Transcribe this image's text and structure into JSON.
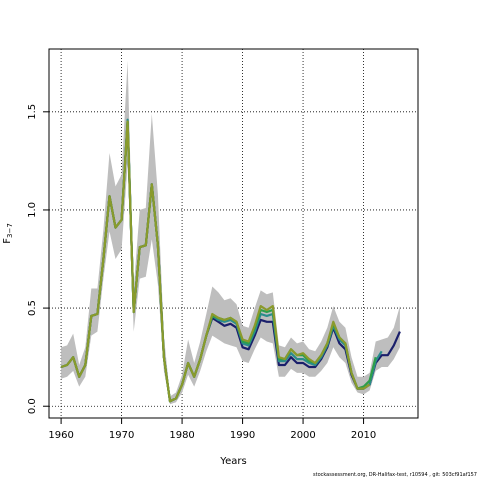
{
  "chart_data": {
    "type": "line",
    "xlabel": "Years",
    "ylabel": "F3-7",
    "ylabel_base": "F",
    "ylabel_sub": "3−7",
    "xlim": [
      1958,
      2019
    ],
    "ylim": [
      -0.06,
      1.82
    ],
    "xticks": [
      1960,
      1970,
      1980,
      1990,
      2000,
      2010
    ],
    "yticks": [
      0.0,
      0.5,
      1.0,
      1.5
    ],
    "yticks_labels": [
      "0.0",
      "0.5",
      "1.0",
      "1.5"
    ],
    "grid": true,
    "band": {
      "color": "#bebebe",
      "x": [
        1960,
        1961,
        1962,
        1963,
        1964,
        1965,
        1966,
        1967,
        1968,
        1969,
        1970,
        1971,
        1972,
        1973,
        1974,
        1975,
        1976,
        1977,
        1978,
        1979,
        1980,
        1981,
        1982,
        1983,
        1984,
        1985,
        1986,
        1987,
        1988,
        1989,
        1990,
        1991,
        1992,
        1993,
        1994,
        1995,
        1996,
        1997,
        1998,
        1999,
        2000,
        2001,
        2002,
        2003,
        2004,
        2005,
        2006,
        2007,
        2008,
        2009,
        2010,
        2011,
        2012,
        2013,
        2014,
        2015,
        2016
      ],
      "upper": [
        0.3,
        0.31,
        0.37,
        0.21,
        0.3,
        0.6,
        0.6,
        0.9,
        1.29,
        1.12,
        1.18,
        1.76,
        0.6,
        1.0,
        1.01,
        1.49,
        1.08,
        0.36,
        0.05,
        0.07,
        0.16,
        0.34,
        0.22,
        0.33,
        0.47,
        0.61,
        0.58,
        0.54,
        0.55,
        0.52,
        0.41,
        0.4,
        0.5,
        0.59,
        0.57,
        0.58,
        0.31,
        0.3,
        0.35,
        0.32,
        0.33,
        0.29,
        0.28,
        0.33,
        0.4,
        0.51,
        0.43,
        0.4,
        0.25,
        0.15,
        0.15,
        0.17,
        0.33,
        0.34,
        0.35,
        0.4,
        0.51
      ],
      "lower": [
        0.14,
        0.15,
        0.18,
        0.1,
        0.15,
        0.36,
        0.38,
        0.65,
        0.89,
        0.75,
        0.8,
        1.23,
        0.38,
        0.65,
        0.66,
        0.85,
        0.62,
        0.18,
        0.01,
        0.02,
        0.07,
        0.16,
        0.1,
        0.18,
        0.28,
        0.36,
        0.34,
        0.32,
        0.31,
        0.3,
        0.23,
        0.22,
        0.29,
        0.35,
        0.33,
        0.32,
        0.15,
        0.15,
        0.19,
        0.17,
        0.17,
        0.15,
        0.15,
        0.18,
        0.22,
        0.3,
        0.25,
        0.22,
        0.12,
        0.07,
        0.06,
        0.08,
        0.18,
        0.2,
        0.2,
        0.24,
        0.3
      ]
    },
    "series": [
      {
        "color": "#1a1f6b",
        "width": 2.2,
        "x": [
          1960,
          1961,
          1962,
          1963,
          1964,
          1965,
          1966,
          1967,
          1968,
          1969,
          1970,
          1971,
          1972,
          1973,
          1974,
          1975,
          1976,
          1977,
          1978,
          1979,
          1980,
          1981,
          1982,
          1983,
          1984,
          1985,
          1986,
          1987,
          1988,
          1989,
          1990,
          1991,
          1992,
          1993,
          1994,
          1995,
          1996,
          1997,
          1998,
          1999,
          2000,
          2001,
          2002,
          2003,
          2004,
          2005,
          2006,
          2007,
          2008,
          2009,
          2010,
          2011,
          2012,
          2013,
          2014,
          2015,
          2016
        ],
        "values": [
          0.2,
          0.21,
          0.25,
          0.15,
          0.21,
          0.46,
          0.47,
          0.75,
          1.07,
          0.91,
          0.95,
          1.45,
          0.48,
          0.81,
          0.82,
          1.13,
          0.82,
          0.25,
          0.025,
          0.04,
          0.11,
          0.22,
          0.15,
          0.24,
          0.36,
          0.45,
          0.43,
          0.41,
          0.42,
          0.4,
          0.3,
          0.29,
          0.36,
          0.44,
          0.43,
          0.43,
          0.21,
          0.21,
          0.25,
          0.22,
          0.22,
          0.2,
          0.2,
          0.24,
          0.3,
          0.4,
          0.32,
          0.29,
          0.16,
          0.09,
          0.09,
          0.11,
          0.22,
          0.26,
          0.26,
          0.31,
          0.38
        ]
      },
      {
        "color": "#2a8c8c",
        "width": 2.2,
        "x": [
          1960,
          1961,
          1962,
          1963,
          1964,
          1965,
          1966,
          1967,
          1968,
          1969,
          1970,
          1971,
          1972,
          1973,
          1974,
          1975,
          1976,
          1977,
          1978,
          1979,
          1980,
          1981,
          1982,
          1983,
          1984,
          1985,
          1986,
          1987,
          1988,
          1989,
          1990,
          1991,
          1992,
          1993,
          1994,
          1995,
          1996,
          1997,
          1998,
          1999,
          2000,
          2001,
          2002,
          2003,
          2004,
          2005,
          2006,
          2007,
          2008,
          2009,
          2010,
          2011,
          2012,
          2013
        ],
        "values": [
          0.2,
          0.21,
          0.25,
          0.15,
          0.21,
          0.46,
          0.47,
          0.75,
          1.07,
          0.91,
          0.95,
          1.46,
          0.48,
          0.81,
          0.82,
          1.13,
          0.82,
          0.25,
          0.025,
          0.04,
          0.11,
          0.22,
          0.15,
          0.24,
          0.36,
          0.46,
          0.44,
          0.43,
          0.44,
          0.42,
          0.32,
          0.31,
          0.38,
          0.47,
          0.46,
          0.47,
          0.23,
          0.23,
          0.27,
          0.24,
          0.24,
          0.22,
          0.21,
          0.25,
          0.31,
          0.41,
          0.34,
          0.31,
          0.17,
          0.09,
          0.09,
          0.11,
          0.23,
          0.28
        ]
      },
      {
        "color": "#2e9e4a",
        "width": 2.2,
        "x": [
          1960,
          1961,
          1962,
          1963,
          1964,
          1965,
          1966,
          1967,
          1968,
          1969,
          1970,
          1971,
          1972,
          1973,
          1974,
          1975,
          1976,
          1977,
          1978,
          1979,
          1980,
          1981,
          1982,
          1983,
          1984,
          1985,
          1986,
          1987,
          1988,
          1989,
          1990,
          1991,
          1992,
          1993,
          1994,
          1995,
          1996,
          1997,
          1998,
          1999,
          2000,
          2001,
          2002,
          2003,
          2004,
          2005,
          2006,
          2007,
          2008,
          2009,
          2010,
          2011,
          2012
        ],
        "values": [
          0.2,
          0.21,
          0.25,
          0.15,
          0.21,
          0.46,
          0.47,
          0.75,
          1.07,
          0.91,
          0.95,
          1.45,
          0.48,
          0.81,
          0.82,
          1.13,
          0.82,
          0.25,
          0.025,
          0.04,
          0.11,
          0.22,
          0.15,
          0.24,
          0.36,
          0.46,
          0.45,
          0.44,
          0.45,
          0.43,
          0.33,
          0.32,
          0.4,
          0.49,
          0.48,
          0.49,
          0.24,
          0.24,
          0.29,
          0.26,
          0.26,
          0.23,
          0.22,
          0.26,
          0.32,
          0.42,
          0.35,
          0.32,
          0.17,
          0.09,
          0.1,
          0.13,
          0.25
        ]
      },
      {
        "color": "#8a9a2c",
        "width": 2.2,
        "x": [
          1960,
          1961,
          1962,
          1963,
          1964,
          1965,
          1966,
          1967,
          1968,
          1969,
          1970,
          1971,
          1972,
          1973,
          1974,
          1975,
          1976,
          1977,
          1978,
          1979,
          1980,
          1981,
          1982,
          1983,
          1984,
          1985,
          1986,
          1987,
          1988,
          1989,
          1990,
          1991,
          1992,
          1993,
          1994,
          1995,
          1996,
          1997,
          1998,
          1999,
          2000,
          2001,
          2002,
          2003,
          2004,
          2005,
          2006,
          2007,
          2008,
          2009,
          2010,
          2011
        ],
        "values": [
          0.2,
          0.21,
          0.25,
          0.15,
          0.21,
          0.46,
          0.47,
          0.75,
          1.07,
          0.91,
          0.95,
          1.45,
          0.48,
          0.81,
          0.82,
          1.13,
          0.82,
          0.25,
          0.025,
          0.04,
          0.11,
          0.22,
          0.15,
          0.24,
          0.36,
          0.47,
          0.45,
          0.44,
          0.45,
          0.43,
          0.34,
          0.33,
          0.41,
          0.51,
          0.49,
          0.51,
          0.25,
          0.24,
          0.29,
          0.26,
          0.27,
          0.24,
          0.22,
          0.26,
          0.32,
          0.43,
          0.35,
          0.32,
          0.17,
          0.09,
          0.09,
          0.11
        ]
      }
    ]
  },
  "footer_text": "stockassessment.org, DR-Halifax-test, r10594 , git: 503cf91af157"
}
